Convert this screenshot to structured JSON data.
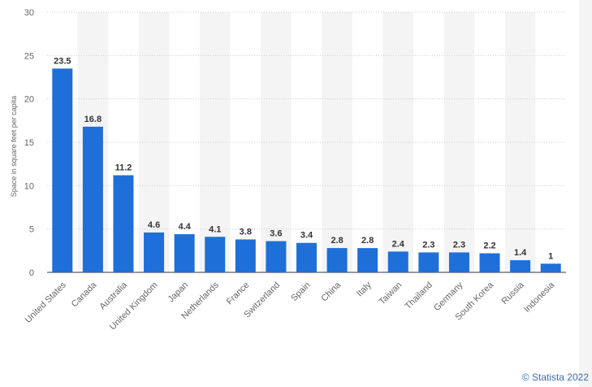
{
  "chart_data": {
    "type": "bar",
    "categories": [
      "United States",
      "Canada",
      "Australia",
      "United Kingdom",
      "Japan",
      "Netherlands",
      "France",
      "Switzerland",
      "Spain",
      "China",
      "Italy",
      "Taiwan",
      "Thailand",
      "Germany",
      "South Korea",
      "Russia",
      "Indonesia"
    ],
    "values": [
      23.5,
      16.8,
      11.2,
      4.6,
      4.4,
      4.1,
      3.8,
      3.6,
      3.4,
      2.8,
      2.8,
      2.4,
      2.3,
      2.3,
      2.2,
      1.4,
      1
    ],
    "ylabel": "Space in square feet per capita",
    "ylim": [
      0,
      30
    ],
    "yticks": [
      0,
      5,
      10,
      15,
      20,
      25,
      30
    ],
    "grid": true,
    "bar_color": "#1f6fd8",
    "band_color": "#f4f4f4"
  },
  "credit": "© Statista 2022"
}
